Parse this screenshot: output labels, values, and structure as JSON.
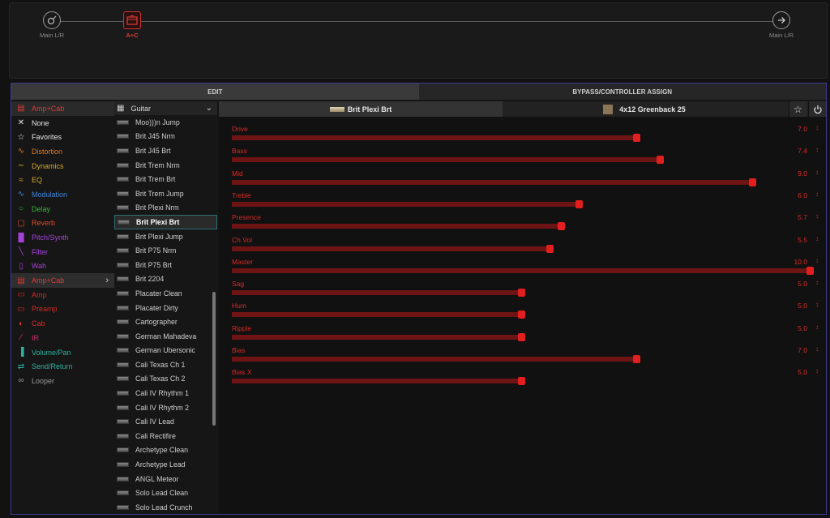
{
  "chain": {
    "input_label": "Main L/R",
    "block_label": "A+C",
    "output_label": "Main L/R"
  },
  "tabs": {
    "edit": "EDIT",
    "bypass": "BYPASS/CONTROLLER ASSIGN"
  },
  "colors": {
    "accent_red": "#e21f1f",
    "panel_border": "#3b3d8f"
  },
  "categories": {
    "header": {
      "label": "Amp+Cab",
      "color": "#e03b35",
      "icon": "amp-cab-icon"
    },
    "items": [
      {
        "label": "None",
        "color": "#e6e6e6",
        "icon": "x-icon"
      },
      {
        "label": "Favorites",
        "color": "#e6e6e6",
        "icon": "star-icon"
      },
      {
        "label": "Distortion",
        "color": "#e07a22",
        "icon": "distortion-icon"
      },
      {
        "label": "Dynamics",
        "color": "#d2a82a",
        "icon": "dynamics-icon"
      },
      {
        "label": "EQ",
        "color": "#d2a82a",
        "icon": "eq-icon"
      },
      {
        "label": "Modulation",
        "color": "#3f86d6",
        "icon": "modulation-icon"
      },
      {
        "label": "Delay",
        "color": "#36b536",
        "icon": "delay-icon"
      },
      {
        "label": "Reverb",
        "color": "#e04a2a",
        "icon": "reverb-icon"
      },
      {
        "label": "Pitch/Synth",
        "color": "#a443d6",
        "icon": "pitch-synth-icon"
      },
      {
        "label": "Filter",
        "color": "#a443d6",
        "icon": "filter-icon"
      },
      {
        "label": "Wah",
        "color": "#a443d6",
        "icon": "wah-icon"
      },
      {
        "label": "Amp+Cab",
        "color": "#e03b35",
        "icon": "amp-cab-icon",
        "active": true
      },
      {
        "label": "Amp",
        "color": "#d62a26",
        "icon": "amp-icon"
      },
      {
        "label": "Preamp",
        "color": "#d62a26",
        "icon": "preamp-icon"
      },
      {
        "label": "Cab",
        "color": "#d62a26",
        "icon": "cab-icon"
      },
      {
        "label": "IR",
        "color": "#d03070",
        "icon": "ir-icon"
      },
      {
        "label": "Volume/Pan",
        "color": "#2fb0a0",
        "icon": "volume-pan-icon"
      },
      {
        "label": "Send/Return",
        "color": "#2fb0a0",
        "icon": "send-return-icon"
      },
      {
        "label": "Looper",
        "color": "#9a9a9a",
        "icon": "looper-icon"
      }
    ]
  },
  "models": {
    "header": "Guitar",
    "items": [
      "Moo)))n Jump",
      "Brit J45 Nrm",
      "Brit J45 Brt",
      "Brit Trem Nrm",
      "Brit Trem Brt",
      "Brit Trem Jump",
      "Brit Plexi Nrm",
      "Brit Plexi Brt",
      "Brit Plexi Jump",
      "Brit P75 Nrm",
      "Brit P75 Brt",
      "Brit 2204",
      "Placater Clean",
      "Placater Dirty",
      "Cartographer",
      "German Mahadeva",
      "German Ubersonic",
      "Cali Texas Ch 1",
      "Cali Texas Ch 2",
      "Cali IV Rhythm 1",
      "Cali IV Rhythm 2",
      "Cali IV Lead",
      "Cali Rectifire",
      "Archetype Clean",
      "Archetype Lead",
      "ANGL Meteor",
      "Solo Lead Clean",
      "Solo Lead Crunch"
    ],
    "selected": "Brit Plexi Brt"
  },
  "param_head": {
    "amp": "Brit Plexi Brt",
    "cab": "4x12 Greenback 25"
  },
  "params": [
    {
      "name": "Drive",
      "value": "7.0",
      "level": 0.7
    },
    {
      "name": "Bass",
      "value": "7.4",
      "level": 0.74
    },
    {
      "name": "Mid",
      "value": "9.0",
      "level": 0.9
    },
    {
      "name": "Treble",
      "value": "6.0",
      "level": 0.6
    },
    {
      "name": "Presence",
      "value": "5.7",
      "level": 0.57
    },
    {
      "name": "Ch Vol",
      "value": "5.5",
      "level": 0.55
    },
    {
      "name": "Master",
      "value": "10.0",
      "level": 1.0
    },
    {
      "name": "Sag",
      "value": "5.0",
      "level": 0.5
    },
    {
      "name": "Hum",
      "value": "5.0",
      "level": 0.5
    },
    {
      "name": "Ripple",
      "value": "5.0",
      "level": 0.5
    },
    {
      "name": "Bias",
      "value": "7.0",
      "level": 0.7
    },
    {
      "name": "Bias X",
      "value": "5.0",
      "level": 0.5
    }
  ]
}
